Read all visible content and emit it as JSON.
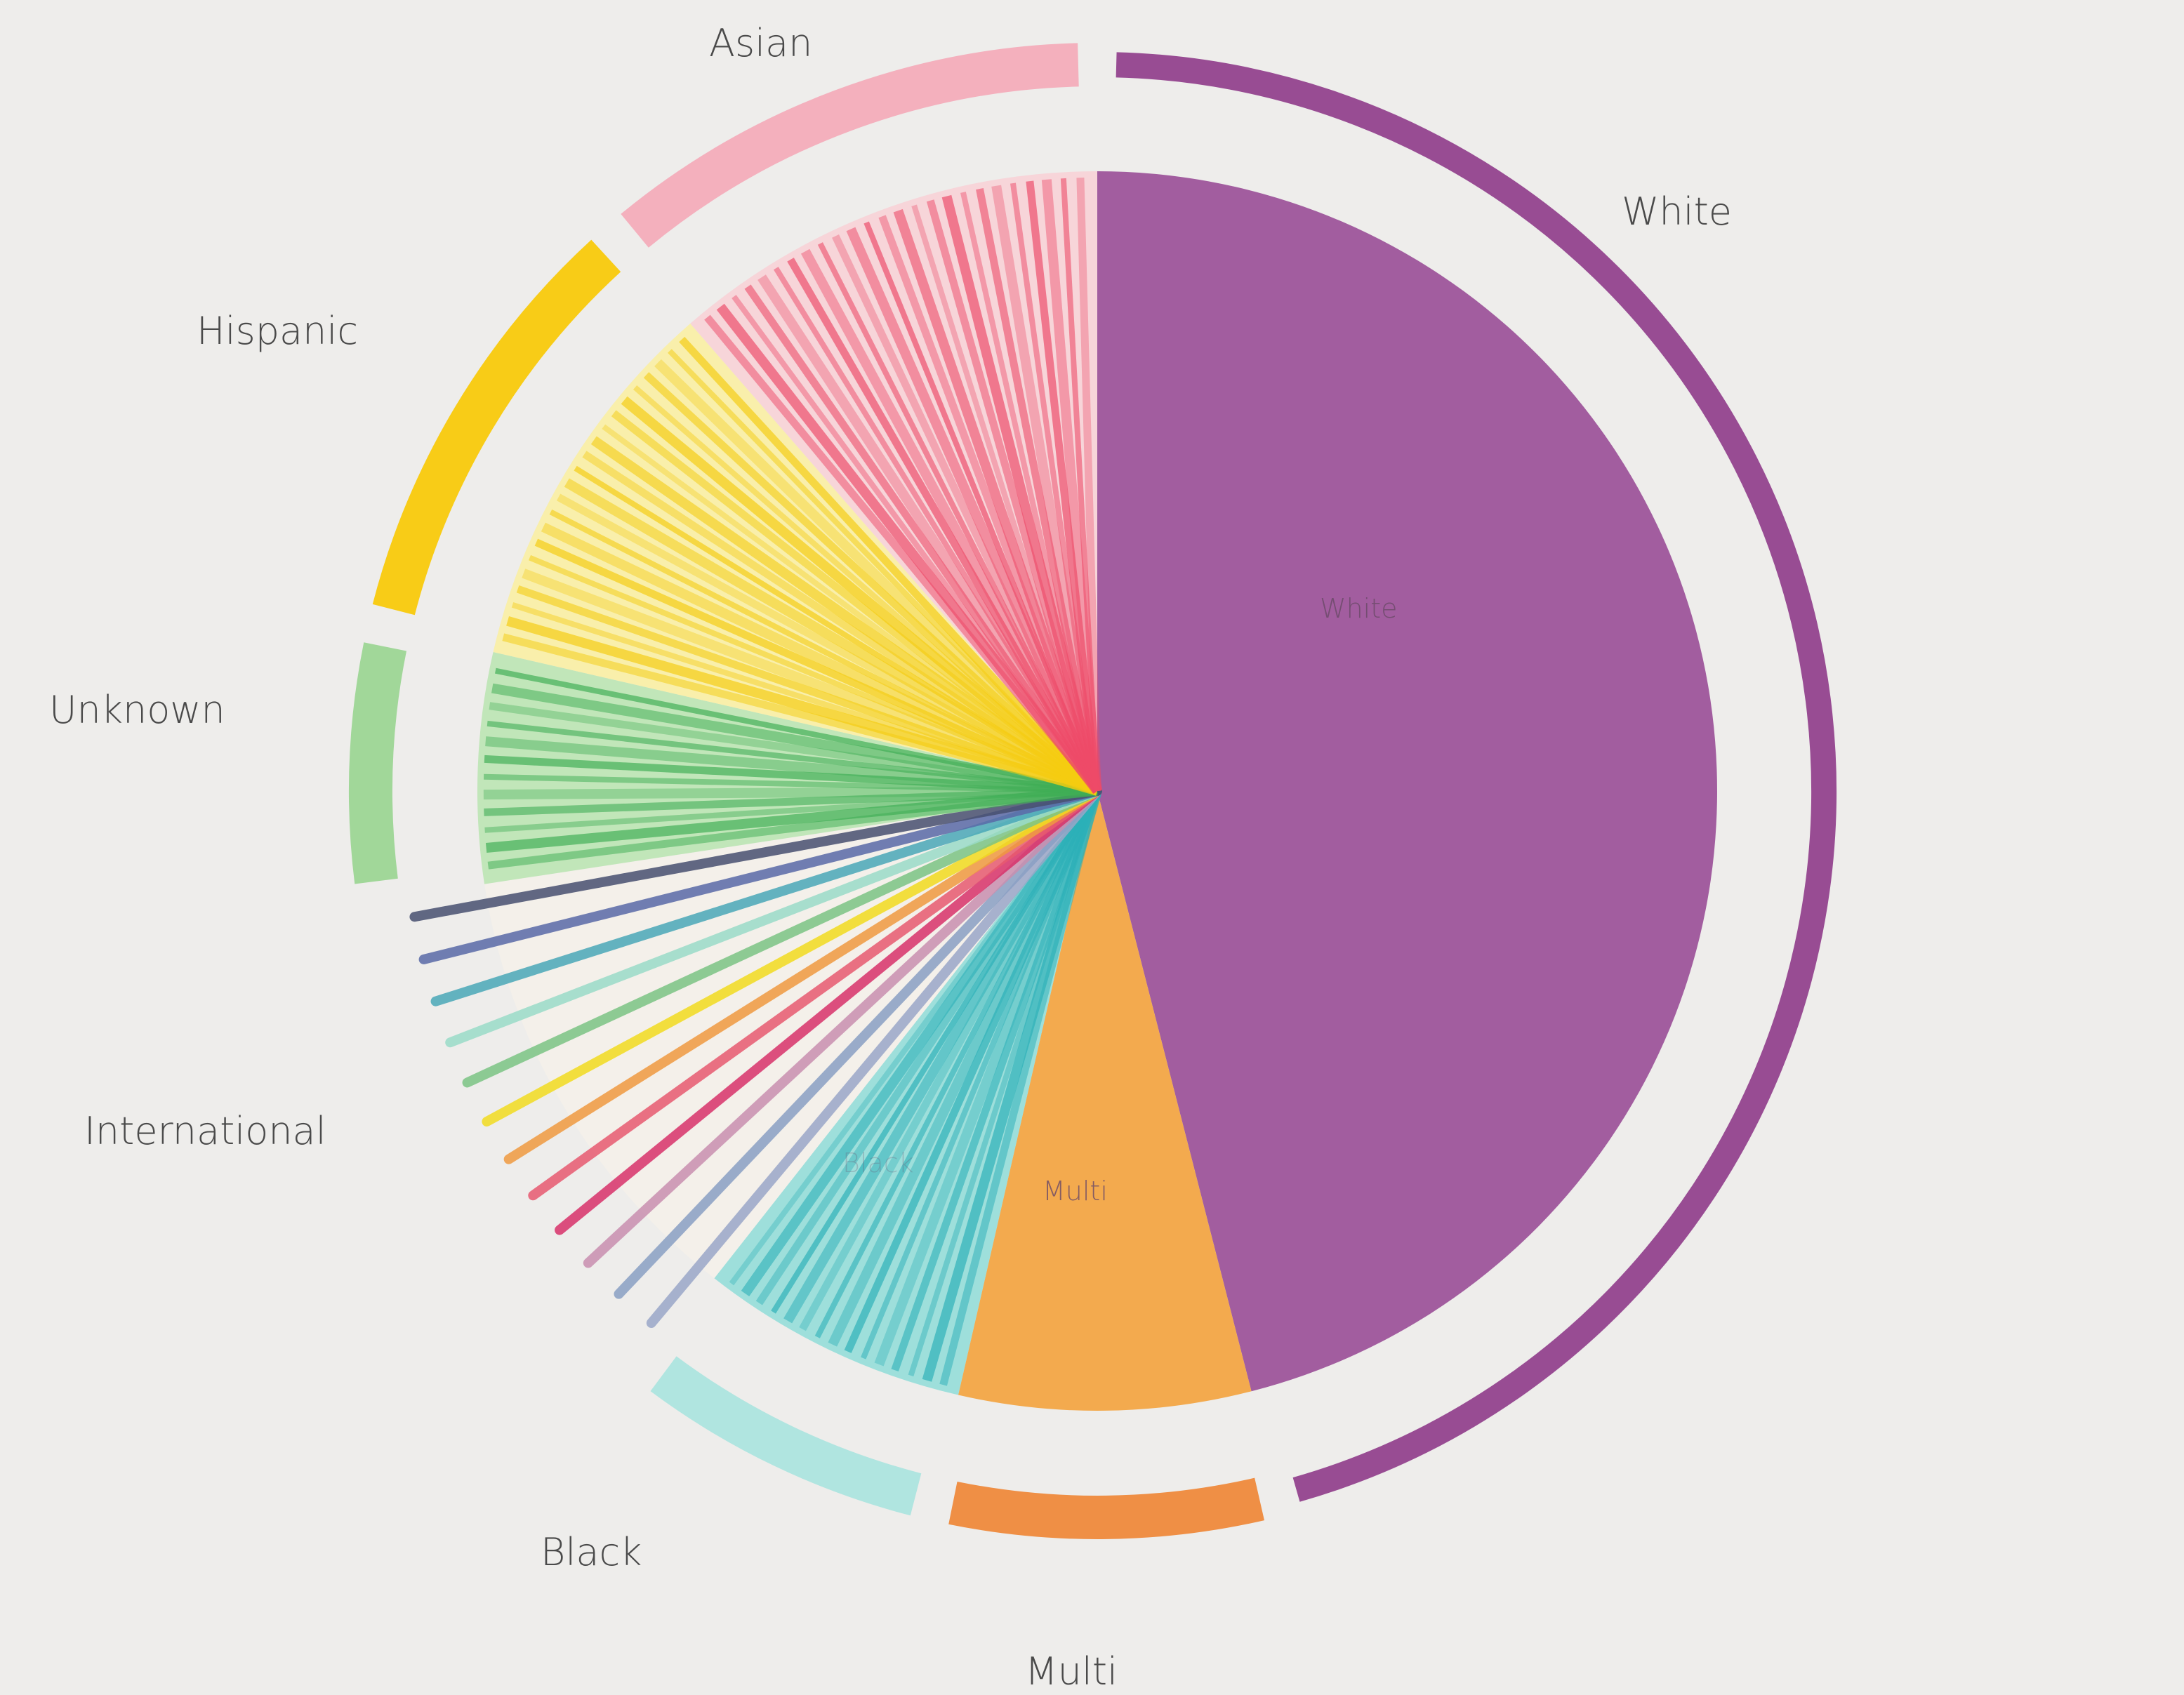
{
  "chart_data": {
    "type": "pie",
    "title": "",
    "slices": [
      {
        "label": "White",
        "value": 46,
        "color": "#9d559b",
        "ring": "#8e3a8a",
        "style": "solid"
      },
      {
        "label": "Multi",
        "value": 7.6,
        "color": "#f2a646",
        "ring": "#ee8433",
        "style": "solid"
      },
      {
        "label": "Black",
        "value": 7,
        "color": "#8fdcd8",
        "ring": "#a9e3df",
        "style": "striped",
        "stripe": "#2bb0b8"
      },
      {
        "label": "International",
        "value": 12,
        "color": "#f4f0ea",
        "ring": null,
        "style": "multicolor-lines",
        "stripe_colors": [
          "#9aa7c8",
          "#8aa0c4",
          "#c98fb0",
          "#d8326a",
          "#e85a70",
          "#f09a40",
          "#f2dc20",
          "#7cc484",
          "#9adcc8",
          "#4aa8b8",
          "#5a6aa8",
          "#485070"
        ]
      },
      {
        "label": "Unknown",
        "value": 6,
        "color": "#b8e4b0",
        "ring": "#98d490",
        "style": "striped",
        "stripe": "#3fae55"
      },
      {
        "label": "Hispanic",
        "value": 10,
        "color": "#faeea0",
        "ring": "#f8c800",
        "style": "striped",
        "stripe": "#f5cc10"
      },
      {
        "label": "Asian",
        "value": 11.4,
        "color": "#f8d0d6",
        "ring": "#f4a8b8",
        "style": "striped",
        "stripe": "#ee4a68"
      }
    ],
    "inner_labels": [
      "White",
      "Multi",
      "Black"
    ],
    "start": "12 o'clock",
    "direction": "clockwise"
  }
}
